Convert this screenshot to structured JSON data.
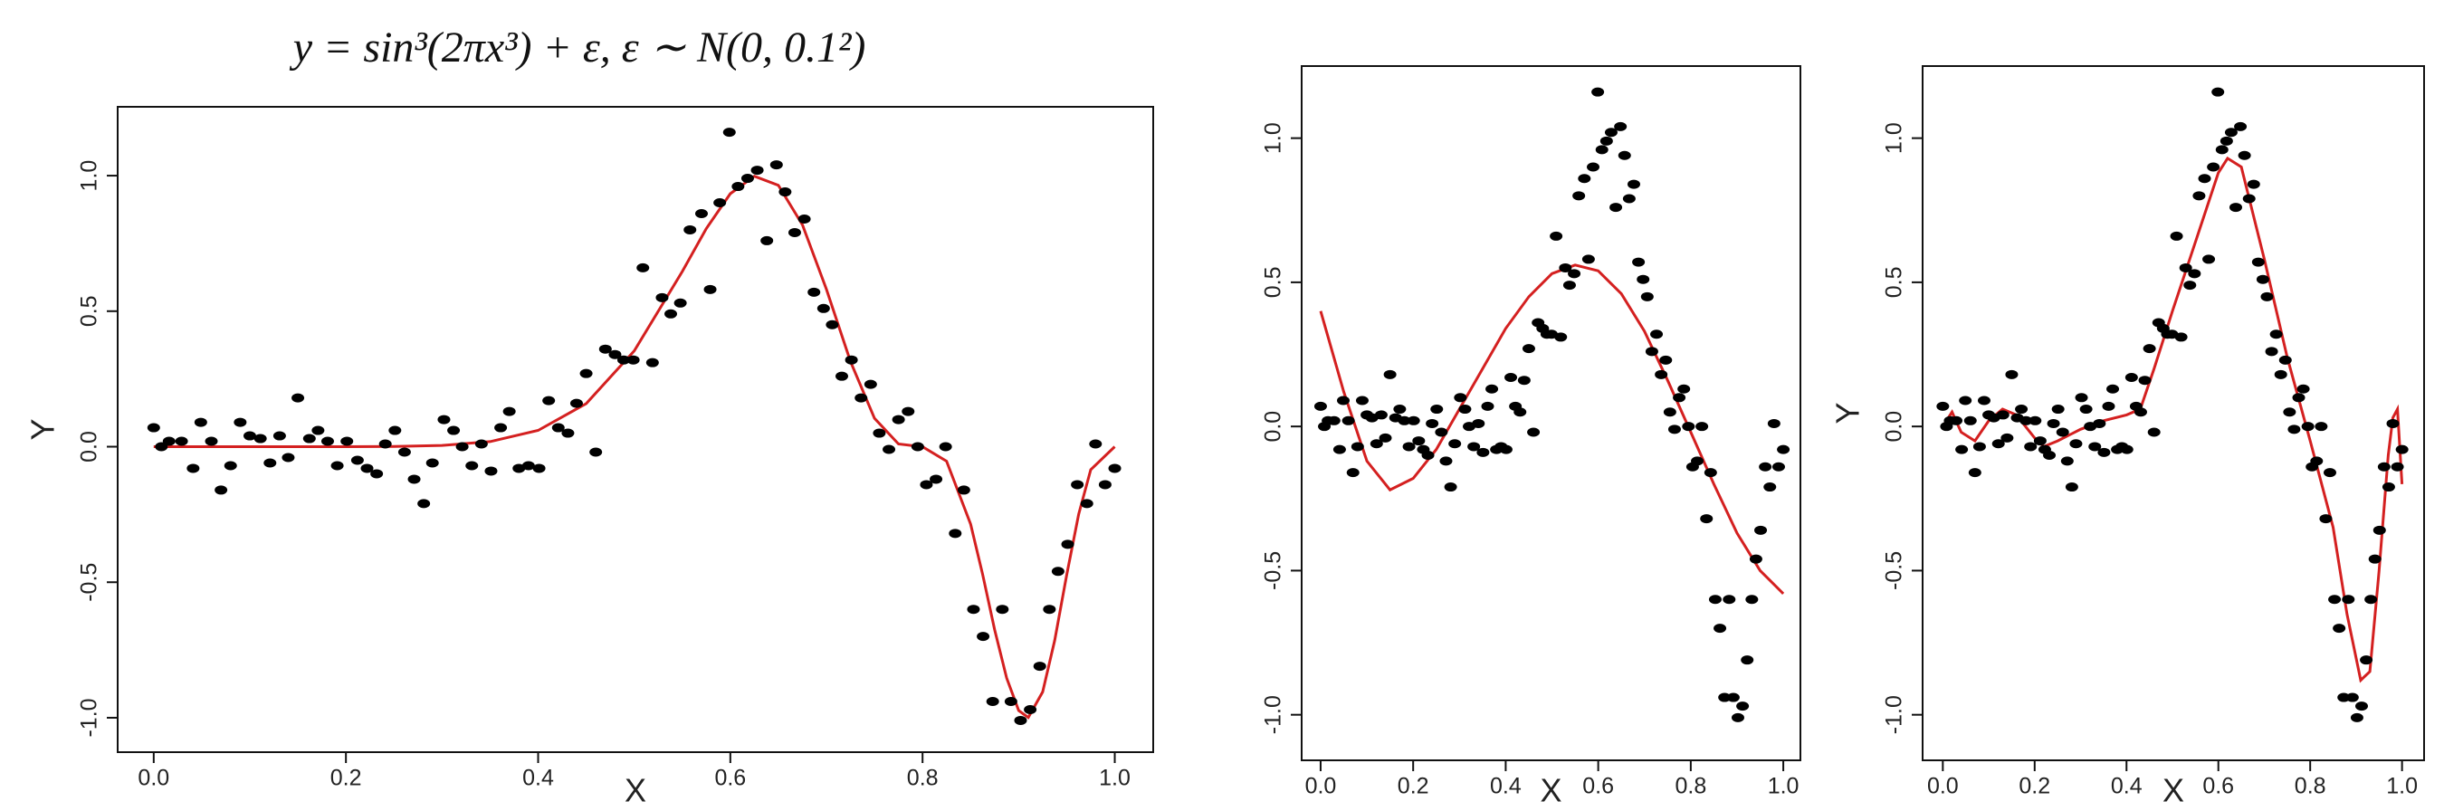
{
  "chart_data": [
    {
      "type": "scatter",
      "title": "y = sin³(2πx³) + ε,   ε ∼ N(0, 0.1²)",
      "x_label": "X",
      "y_label": "Y",
      "xlim": [
        -0.0375,
        1.04
      ],
      "ylim": [
        -1.127,
        1.254
      ],
      "xticks": [
        {
          "value": 0,
          "label": "0.0"
        },
        {
          "value": 0.2,
          "label": "0.2"
        },
        {
          "value": 0.4,
          "label": "0.4"
        },
        {
          "value": 0.6,
          "label": "0.6"
        },
        {
          "value": 0.8,
          "label": "0.8"
        },
        {
          "value": 1,
          "label": "1.0"
        }
      ],
      "yticks": [
        {
          "value": -1,
          "label": "-1.0"
        },
        {
          "value": -0.5,
          "label": "-0.5"
        },
        {
          "value": 0,
          "label": "0.0"
        },
        {
          "value": 0.5,
          "label": "0.5"
        },
        {
          "value": 1,
          "label": "1.0"
        }
      ],
      "points": {
        "color": "#000000",
        "x": [
          0,
          0.008,
          0.016,
          0.029,
          0.041,
          0.049,
          0.06,
          0.07,
          0.08,
          0.09,
          0.1,
          0.111,
          0.121,
          0.131,
          0.14,
          0.15,
          0.162,
          0.171,
          0.181,
          0.191,
          0.201,
          0.212,
          0.222,
          0.232,
          0.241,
          0.251,
          0.261,
          0.271,
          0.281,
          0.29,
          0.302,
          0.312,
          0.321,
          0.331,
          0.341,
          0.351,
          0.361,
          0.37,
          0.38,
          0.39,
          0.401,
          0.411,
          0.421,
          0.431,
          0.44,
          0.45,
          0.46,
          0.47,
          0.48,
          0.489,
          0.499,
          0.509,
          0.519,
          0.529,
          0.538,
          0.548,
          0.558,
          0.57,
          0.579,
          0.589,
          0.599,
          0.608,
          0.618,
          0.628,
          0.638,
          0.648,
          0.657,
          0.667,
          0.677,
          0.687,
          0.697,
          0.706,
          0.716,
          0.726,
          0.736,
          0.746,
          0.755,
          0.765,
          0.775,
          0.785,
          0.795,
          0.804,
          0.814,
          0.824,
          0.834,
          0.843,
          0.853,
          0.863,
          0.873,
          0.883,
          0.892,
          0.902,
          0.912,
          0.922,
          0.932,
          0.941,
          0.951,
          0.961,
          0.971,
          0.98,
          0.99,
          1.0
        ],
        "y": [
          0.07,
          0,
          0.02,
          0.02,
          -0.08,
          0.09,
          0.02,
          -0.16,
          -0.07,
          0.09,
          0.04,
          0.03,
          -0.06,
          0.04,
          -0.04,
          0.18,
          0.03,
          0.06,
          0.02,
          -0.07,
          0.02,
          -0.05,
          -0.08,
          -0.1,
          0.01,
          0.06,
          -0.02,
          -0.12,
          -0.21,
          -0.06,
          0.1,
          0.06,
          0,
          -0.07,
          0.01,
          -0.09,
          0.07,
          0.13,
          -0.08,
          -0.07,
          -0.08,
          0.17,
          0.07,
          0.05,
          0.16,
          0.27,
          -0.02,
          0.36,
          0.34,
          0.32,
          0.32,
          0.66,
          0.31,
          0.55,
          0.49,
          0.53,
          0.8,
          0.86,
          0.58,
          0.9,
          1.16,
          0.96,
          0.99,
          1.02,
          0.76,
          1.04,
          0.94,
          0.79,
          0.84,
          0.57,
          0.51,
          0.45,
          0.26,
          0.32,
          0.18,
          0.23,
          0.05,
          -0.01,
          0.1,
          0.13,
          0,
          -0.14,
          -0.12,
          0,
          -0.32,
          -0.16,
          -0.6,
          -0.7,
          -0.94,
          -0.6,
          -0.94,
          -1.01,
          -0.97,
          -0.81,
          -0.6,
          -0.46,
          -0.36,
          -0.14,
          -0.21,
          0.01,
          -0.14,
          -0.08
        ]
      },
      "curve": {
        "color": "#d42020",
        "x": [
          0,
          0.1,
          0.2,
          0.25,
          0.3,
          0.35,
          0.4,
          0.45,
          0.5,
          0.55,
          0.575,
          0.6,
          0.625,
          0.65,
          0.675,
          0.7,
          0.725,
          0.75,
          0.775,
          0.8,
          0.825,
          0.85,
          0.8625,
          0.875,
          0.8875,
          0.9,
          0.91,
          0.925,
          0.9375,
          0.95,
          0.9625,
          0.975,
          1.0
        ],
        "y": [
          0,
          0,
          0.0001,
          0.0009,
          0.0048,
          0.0188,
          0.06,
          0.1589,
          0.3536,
          0.6465,
          0.8049,
          0.9334,
          0.9979,
          0.9645,
          0.8185,
          0.5807,
          0.3139,
          0.1045,
          0.00995,
          -0.0004,
          -0.0534,
          -0.2857,
          -0.4703,
          -0.675,
          -0.8536,
          -0.9733,
          -0.9992,
          -0.9045,
          -0.7141,
          -0.4734,
          -0.2489,
          -0.0847,
          0
        ]
      }
    },
    {
      "type": "scatter",
      "x_label": "X",
      "xlim": [
        -0.041,
        1.037
      ],
      "ylim": [
        -1.158,
        1.25
      ],
      "xticks": [
        {
          "value": 0,
          "label": "0.0"
        },
        {
          "value": 0.2,
          "label": "0.2"
        },
        {
          "value": 0.4,
          "label": "0.4"
        },
        {
          "value": 0.6,
          "label": "0.6"
        },
        {
          "value": 0.8,
          "label": "0.8"
        },
        {
          "value": 1,
          "label": "1.0"
        }
      ],
      "yticks": [
        {
          "value": -1,
          "label": "-1.0"
        },
        {
          "value": -0.5,
          "label": "-0.5"
        },
        {
          "value": 0,
          "label": "0.0"
        },
        {
          "value": 0.5,
          "label": "0.5"
        },
        {
          "value": 1,
          "label": "1.0"
        }
      ],
      "points": {
        "color": "#000000",
        "x": [
          0,
          0.008,
          0.016,
          0.029,
          0.041,
          0.049,
          0.06,
          0.07,
          0.08,
          0.09,
          0.1,
          0.111,
          0.121,
          0.131,
          0.14,
          0.15,
          0.162,
          0.171,
          0.181,
          0.191,
          0.201,
          0.212,
          0.222,
          0.232,
          0.241,
          0.251,
          0.261,
          0.271,
          0.281,
          0.29,
          0.302,
          0.312,
          0.321,
          0.331,
          0.341,
          0.351,
          0.361,
          0.37,
          0.38,
          0.39,
          0.401,
          0.411,
          0.421,
          0.431,
          0.44,
          0.45,
          0.46,
          0.47,
          0.48,
          0.489,
          0.499,
          0.509,
          0.519,
          0.529,
          0.538,
          0.548,
          0.558,
          0.57,
          0.579,
          0.589,
          0.599,
          0.608,
          0.618,
          0.628,
          0.638,
          0.648,
          0.657,
          0.667,
          0.677,
          0.687,
          0.697,
          0.706,
          0.716,
          0.726,
          0.736,
          0.746,
          0.755,
          0.765,
          0.775,
          0.785,
          0.795,
          0.804,
          0.814,
          0.824,
          0.834,
          0.843,
          0.853,
          0.863,
          0.873,
          0.883,
          0.892,
          0.902,
          0.912,
          0.922,
          0.932,
          0.941,
          0.951,
          0.961,
          0.971,
          0.98,
          0.99,
          1.0
        ],
        "y": [
          0.07,
          0,
          0.02,
          0.02,
          -0.08,
          0.09,
          0.02,
          -0.16,
          -0.07,
          0.09,
          0.04,
          0.03,
          -0.06,
          0.04,
          -0.04,
          0.18,
          0.03,
          0.06,
          0.02,
          -0.07,
          0.02,
          -0.05,
          -0.08,
          -0.1,
          0.01,
          0.06,
          -0.02,
          -0.12,
          -0.21,
          -0.06,
          0.1,
          0.06,
          0,
          -0.07,
          0.01,
          -0.09,
          0.07,
          0.13,
          -0.08,
          -0.07,
          -0.08,
          0.17,
          0.07,
          0.05,
          0.16,
          0.27,
          -0.02,
          0.36,
          0.34,
          0.32,
          0.32,
          0.66,
          0.31,
          0.55,
          0.49,
          0.53,
          0.8,
          0.86,
          0.58,
          0.9,
          1.16,
          0.96,
          0.99,
          1.02,
          0.76,
          1.04,
          0.94,
          0.79,
          0.84,
          0.57,
          0.51,
          0.45,
          0.26,
          0.32,
          0.18,
          0.23,
          0.05,
          -0.01,
          0.1,
          0.13,
          0,
          -0.14,
          -0.12,
          0,
          -0.32,
          -0.16,
          -0.6,
          -0.7,
          -0.94,
          -0.6,
          -0.94,
          -1.01,
          -0.97,
          -0.81,
          -0.6,
          -0.46,
          -0.36,
          -0.14,
          -0.21,
          0.01,
          -0.14,
          -0.08
        ]
      },
      "curve": {
        "color": "#d42020",
        "x": [
          0,
          0.05,
          0.1,
          0.15,
          0.2,
          0.25,
          0.3,
          0.35,
          0.4,
          0.45,
          0.5,
          0.55,
          0.6,
          0.65,
          0.7,
          0.75,
          0.8,
          0.85,
          0.9,
          0.95,
          1.0
        ],
        "y": [
          0.4,
          0.12,
          -0.12,
          -0.22,
          -0.18,
          -0.08,
          0.06,
          0.2,
          0.34,
          0.45,
          0.53,
          0.56,
          0.54,
          0.46,
          0.33,
          0.16,
          -0.02,
          -0.2,
          -0.37,
          -0.5,
          -0.58
        ]
      }
    },
    {
      "type": "scatter",
      "x_label": "X",
      "y_label": "Y",
      "xlim": [
        -0.044,
        1.048
      ],
      "ylim": [
        -1.158,
        1.25
      ],
      "xticks": [
        {
          "value": 0,
          "label": "0.0"
        },
        {
          "value": 0.2,
          "label": "0.2"
        },
        {
          "value": 0.4,
          "label": "0.4"
        },
        {
          "value": 0.6,
          "label": "0.6"
        },
        {
          "value": 0.8,
          "label": "0.8"
        },
        {
          "value": 1,
          "label": "1.0"
        }
      ],
      "yticks": [
        {
          "value": -1,
          "label": "-1.0"
        },
        {
          "value": -0.5,
          "label": "-0.5"
        },
        {
          "value": 0,
          "label": "0.0"
        },
        {
          "value": 0.5,
          "label": "0.5"
        },
        {
          "value": 1,
          "label": "1.0"
        }
      ],
      "points": {
        "color": "#000000",
        "x": [
          0,
          0.008,
          0.016,
          0.029,
          0.041,
          0.049,
          0.06,
          0.07,
          0.08,
          0.09,
          0.1,
          0.111,
          0.121,
          0.131,
          0.14,
          0.15,
          0.162,
          0.171,
          0.181,
          0.191,
          0.201,
          0.212,
          0.222,
          0.232,
          0.241,
          0.251,
          0.261,
          0.271,
          0.281,
          0.29,
          0.302,
          0.312,
          0.321,
          0.331,
          0.341,
          0.351,
          0.361,
          0.37,
          0.38,
          0.39,
          0.401,
          0.411,
          0.421,
          0.431,
          0.44,
          0.45,
          0.46,
          0.47,
          0.48,
          0.489,
          0.499,
          0.509,
          0.519,
          0.529,
          0.538,
          0.548,
          0.558,
          0.57,
          0.579,
          0.589,
          0.599,
          0.608,
          0.618,
          0.628,
          0.638,
          0.648,
          0.657,
          0.667,
          0.677,
          0.687,
          0.697,
          0.706,
          0.716,
          0.726,
          0.736,
          0.746,
          0.755,
          0.765,
          0.775,
          0.785,
          0.795,
          0.804,
          0.814,
          0.824,
          0.834,
          0.843,
          0.853,
          0.863,
          0.873,
          0.883,
          0.892,
          0.902,
          0.912,
          0.922,
          0.932,
          0.941,
          0.951,
          0.961,
          0.971,
          0.98,
          0.99,
          1.0
        ],
        "y": [
          0.07,
          0,
          0.02,
          0.02,
          -0.08,
          0.09,
          0.02,
          -0.16,
          -0.07,
          0.09,
          0.04,
          0.03,
          -0.06,
          0.04,
          -0.04,
          0.18,
          0.03,
          0.06,
          0.02,
          -0.07,
          0.02,
          -0.05,
          -0.08,
          -0.1,
          0.01,
          0.06,
          -0.02,
          -0.12,
          -0.21,
          -0.06,
          0.1,
          0.06,
          0,
          -0.07,
          0.01,
          -0.09,
          0.07,
          0.13,
          -0.08,
          -0.07,
          -0.08,
          0.17,
          0.07,
          0.05,
          0.16,
          0.27,
          -0.02,
          0.36,
          0.34,
          0.32,
          0.32,
          0.66,
          0.31,
          0.55,
          0.49,
          0.53,
          0.8,
          0.86,
          0.58,
          0.9,
          1.16,
          0.96,
          0.99,
          1.02,
          0.76,
          1.04,
          0.94,
          0.79,
          0.84,
          0.57,
          0.51,
          0.45,
          0.26,
          0.32,
          0.18,
          0.23,
          0.05,
          -0.01,
          0.1,
          0.13,
          0,
          -0.14,
          -0.12,
          0,
          -0.32,
          -0.16,
          -0.6,
          -0.7,
          -0.94,
          -0.6,
          -0.94,
          -1.01,
          -0.97,
          -0.81,
          -0.6,
          -0.46,
          -0.36,
          -0.14,
          -0.21,
          0.01,
          -0.14,
          -0.08
        ]
      },
      "curve": {
        "color": "#d42020",
        "x": [
          0,
          0.02,
          0.04,
          0.07,
          0.1,
          0.13,
          0.16,
          0.2,
          0.22,
          0.25,
          0.3,
          0.35,
          0.4,
          0.43,
          0.46,
          0.5,
          0.55,
          0.6,
          0.62,
          0.65,
          0.7,
          0.75,
          0.8,
          0.85,
          0.88,
          0.91,
          0.93,
          0.95,
          0.97,
          0.98,
          0.99,
          1.0
        ],
        "y": [
          0,
          0.05,
          -0.02,
          -0.05,
          0.02,
          0.06,
          0.04,
          -0.04,
          -0.07,
          -0.05,
          -0.01,
          0.02,
          0.04,
          0.06,
          0.2,
          0.4,
          0.64,
          0.88,
          0.93,
          0.9,
          0.58,
          0.24,
          -0.05,
          -0.35,
          -0.65,
          -0.88,
          -0.85,
          -0.5,
          -0.1,
          0.03,
          0.06,
          -0.2
        ]
      }
    }
  ]
}
